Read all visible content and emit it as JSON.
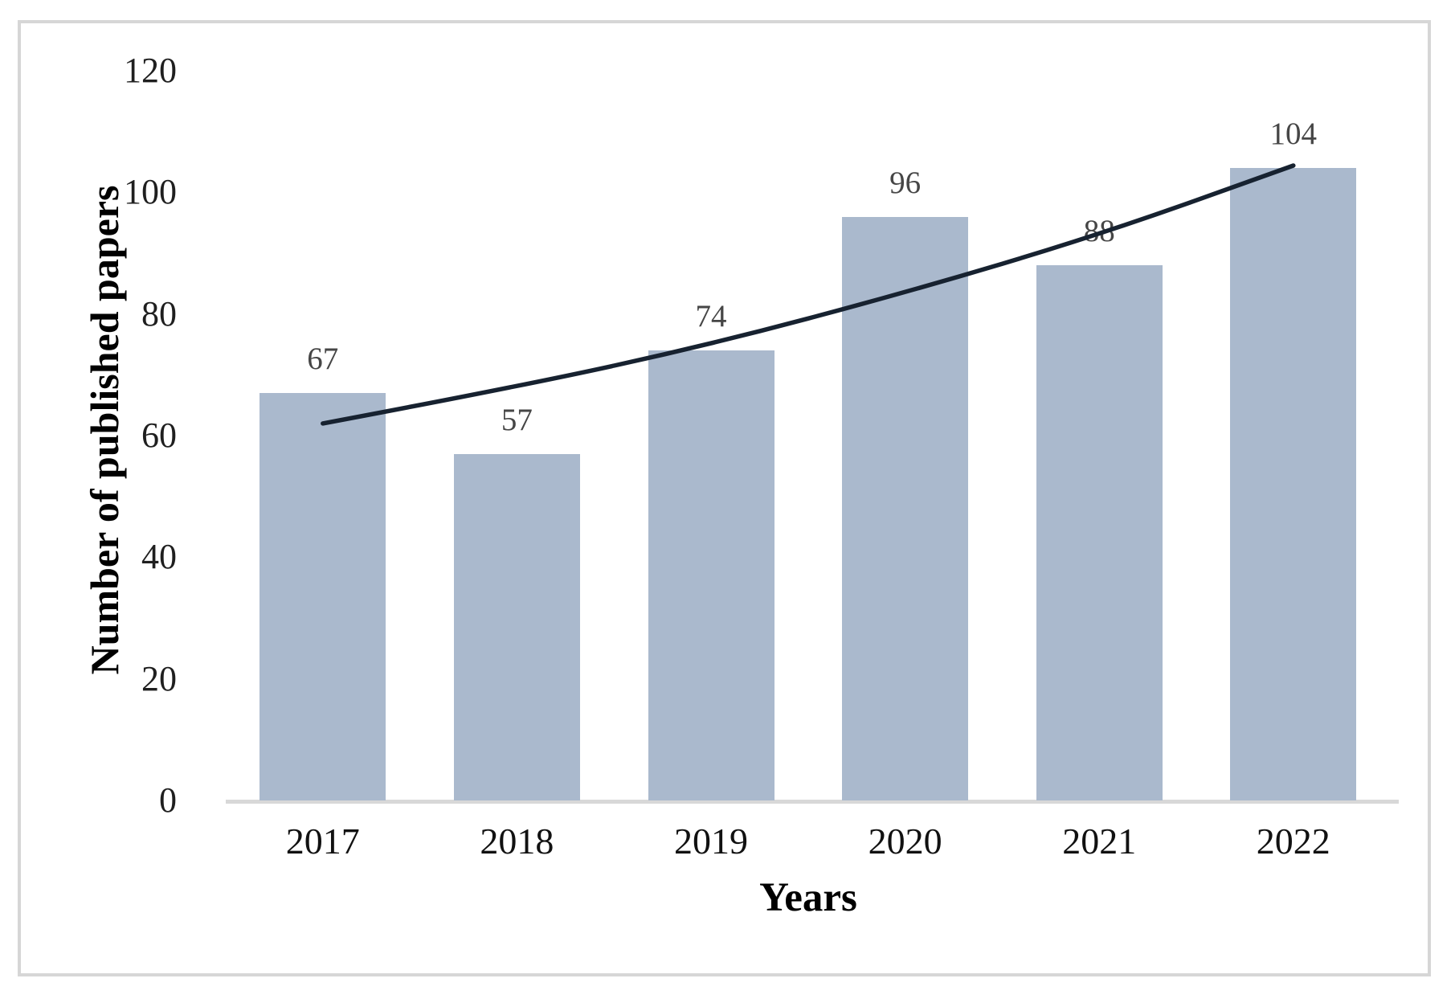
{
  "chart_data": {
    "type": "bar",
    "title": "",
    "xlabel": "Years",
    "ylabel": "Number of published papers",
    "categories": [
      "2017",
      "2018",
      "2019",
      "2020",
      "2021",
      "2022"
    ],
    "values": [
      67,
      57,
      74,
      96,
      88,
      104
    ],
    "data_labels": [
      "67",
      "57",
      "74",
      "96",
      "88",
      "104"
    ],
    "yticks": [
      0,
      20,
      40,
      60,
      80,
      100,
      120
    ],
    "ylim": [
      0,
      120
    ],
    "grid": false,
    "legend": false,
    "series": [
      {
        "name": "published-papers-bars",
        "type": "bar",
        "values": [
          67,
          57,
          74,
          96,
          88,
          104
        ]
      },
      {
        "name": "trendline",
        "type": "line",
        "values": [
          62,
          68,
          75,
          83.5,
          93,
          104.4
        ]
      }
    ]
  },
  "colors": {
    "bar_fill": "#aab9cd",
    "trend_line": "#172230",
    "axis_line": "#d8d8d8",
    "frame_border": "#d6d6d6",
    "data_label": "#464646",
    "tick_label": "#1f1f1f",
    "axis_title": "#000000",
    "background": "#ffffff"
  }
}
